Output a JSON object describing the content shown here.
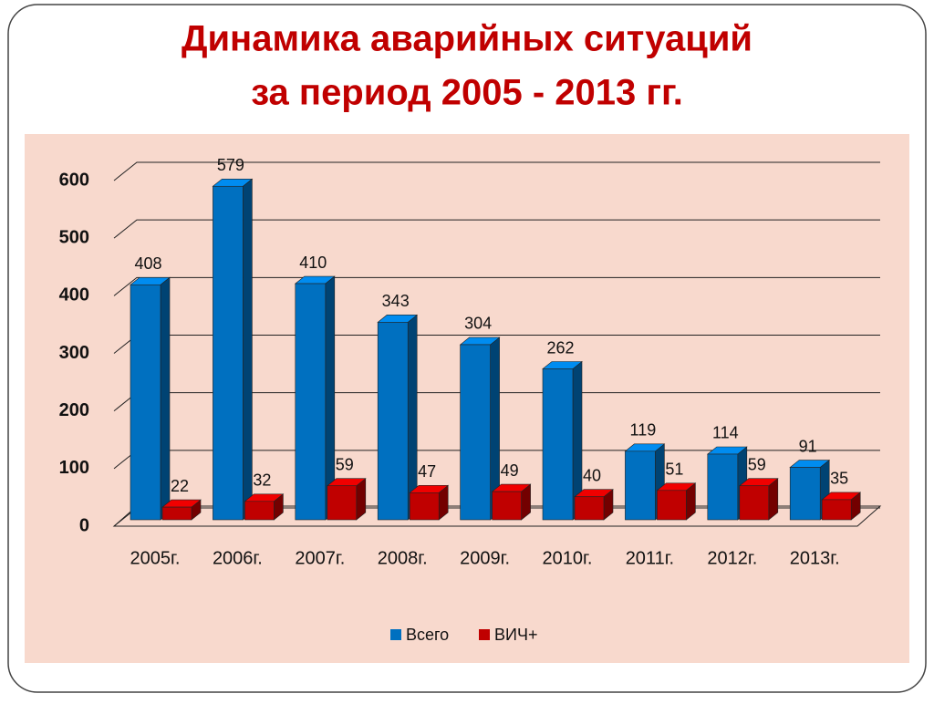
{
  "chart_data": {
    "type": "bar",
    "title": [
      "Динамика аварийных ситуаций",
      "за период 2005 - 2013 гг."
    ],
    "categories": [
      "2005г.",
      "2006г.",
      "2007г.",
      "2008г.",
      "2009г.",
      "2010г.",
      "2011г.",
      "2012г.",
      "2013г."
    ],
    "series": [
      {
        "name": "Всего",
        "color": "#0070c0",
        "values": [
          408,
          579,
          410,
          343,
          304,
          262,
          119,
          114,
          91
        ]
      },
      {
        "name": "ВИЧ+",
        "color": "#c00000",
        "values": [
          22,
          32,
          59,
          47,
          49,
          40,
          51,
          59,
          35
        ]
      }
    ],
    "ylim": [
      0,
      600
    ],
    "yticks": [
      0,
      100,
      200,
      300,
      400,
      500,
      600
    ],
    "grid": true
  }
}
